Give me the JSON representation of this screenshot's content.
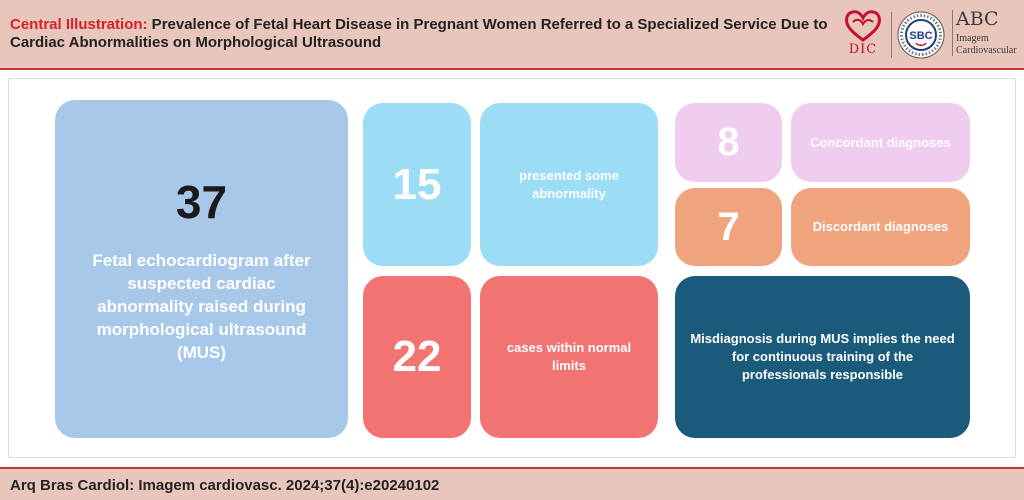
{
  "header": {
    "title_prefix": "Central Illustration:",
    "title_text": " Prevalence of Fetal Heart Disease in Pregnant Women Referred to a Specialized Service Due to Cardiac Abnormalities on Morphological Ultrasound",
    "logos": {
      "dic": "DIC",
      "sbc": "SBC",
      "sbc_ring": "SOCIEDADE BRASILEIRA DE CARDIOLOGIA",
      "abc": "ABC",
      "abc_line1": "Imagem",
      "abc_line2": "Cardiovascular"
    }
  },
  "blocks": {
    "total": {
      "number": "37",
      "label": "Fetal echocardiogram after suspected cardiac abnormality raised during morphological ultrasound (MUS)"
    },
    "abnormal": {
      "number": "15",
      "label": "presented some abnormality"
    },
    "normal": {
      "number": "22",
      "label": "cases within normal limits"
    },
    "concordant": {
      "number": "8",
      "label": "Concordant diagnoses"
    },
    "discordant": {
      "number": "7",
      "label": "Discordant diagnoses"
    },
    "conclusion": {
      "label": "Misdiagnosis during MUS implies the need for continuous training of the professionals responsible"
    }
  },
  "colors": {
    "header_bg": "#e9c6bb",
    "accent_red": "#d62027",
    "total_bg": "#a8c8ea",
    "abnormal_bg": "#9bdcf6",
    "normal_bg": "#f17473",
    "concordant_bg": "#f0ccee",
    "discordant_bg": "#f0a47e",
    "conclusion_bg": "#1a5a7a"
  },
  "footer": {
    "citation": "Arq Bras Cardiol: Imagem cardiovasc. 2024;37(4):e20240102"
  }
}
